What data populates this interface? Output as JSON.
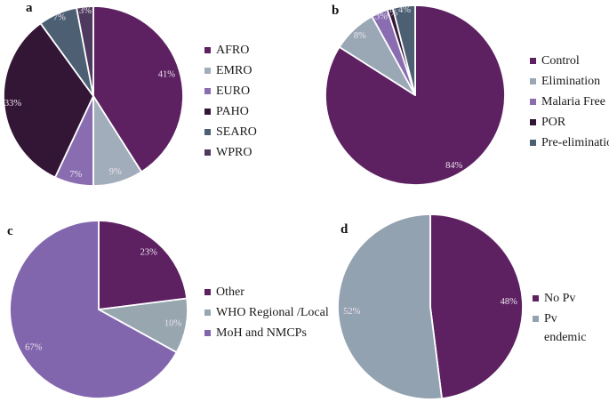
{
  "figure": {
    "background": "#ffffff",
    "slice_label_color": "#eae4ec",
    "separator_color": "#ffffff",
    "legend_text_color": "#1a1a1a"
  },
  "chart_data": [
    {
      "id": "a",
      "letter": "a",
      "type": "pie",
      "title": "",
      "categories": [
        "AFRO",
        "EMRO",
        "EURO",
        "PAHO",
        "SEARO",
        "WPRO"
      ],
      "values": [
        41,
        9,
        7,
        33,
        7,
        3
      ],
      "unit": "%",
      "slice_labels": [
        "41%",
        "9%",
        "7%",
        "33%",
        "7%",
        "3%"
      ],
      "colors": [
        "#5d2162",
        "#a2adbb",
        "#8a6db1",
        "#331635",
        "#4d6073",
        "#4e3a5e"
      ],
      "slice_label_radius": [
        0.85,
        0.88,
        0.9,
        0.9,
        0.95,
        0.95
      ],
      "start_angle_deg": 0,
      "direction": "clockwise",
      "legend_position": "right"
    },
    {
      "id": "b",
      "letter": "b",
      "type": "pie",
      "title": "",
      "categories": [
        "Control",
        "Elimination",
        "Malaria Free",
        "POR",
        "Pre-elimination"
      ],
      "values": [
        84,
        8,
        3,
        1,
        4
      ],
      "unit": "%",
      "slice_labels": [
        "84%",
        "8%",
        "3%",
        "1%",
        "4%"
      ],
      "colors": [
        "#5d2162",
        "#9aa8b6",
        "#8a6db1",
        "#331635",
        "#4d6073"
      ],
      "slice_label_radius": [
        0.9,
        0.9,
        0.95,
        0.95,
        0.95
      ],
      "start_angle_deg": 0,
      "direction": "clockwise",
      "legend_position": "right"
    },
    {
      "id": "c",
      "letter": "c",
      "type": "pie",
      "title": "",
      "categories": [
        "Other",
        "WHO Regional /Local",
        "MoH and NMCPs"
      ],
      "values": [
        23,
        10,
        67
      ],
      "unit": "%",
      "slice_labels": [
        "23%",
        "10%",
        "67%"
      ],
      "colors": [
        "#5d2162",
        "#98a6b0",
        "#8266ad"
      ],
      "slice_label_radius": [
        0.85,
        0.85,
        0.85
      ],
      "start_angle_deg": 0,
      "direction": "clockwise",
      "legend_position": "right"
    },
    {
      "id": "d",
      "letter": "d",
      "type": "pie",
      "title": "",
      "categories": [
        "No Pv",
        "Pv endemic"
      ],
      "values": [
        48,
        52
      ],
      "unit": "%",
      "slice_labels": [
        "48%",
        "52%"
      ],
      "colors": [
        "#5d2162",
        "#93a2b0"
      ],
      "slice_label_radius": [
        0.85,
        0.85
      ],
      "start_angle_deg": 0,
      "direction": "clockwise",
      "legend_position": "right"
    }
  ]
}
